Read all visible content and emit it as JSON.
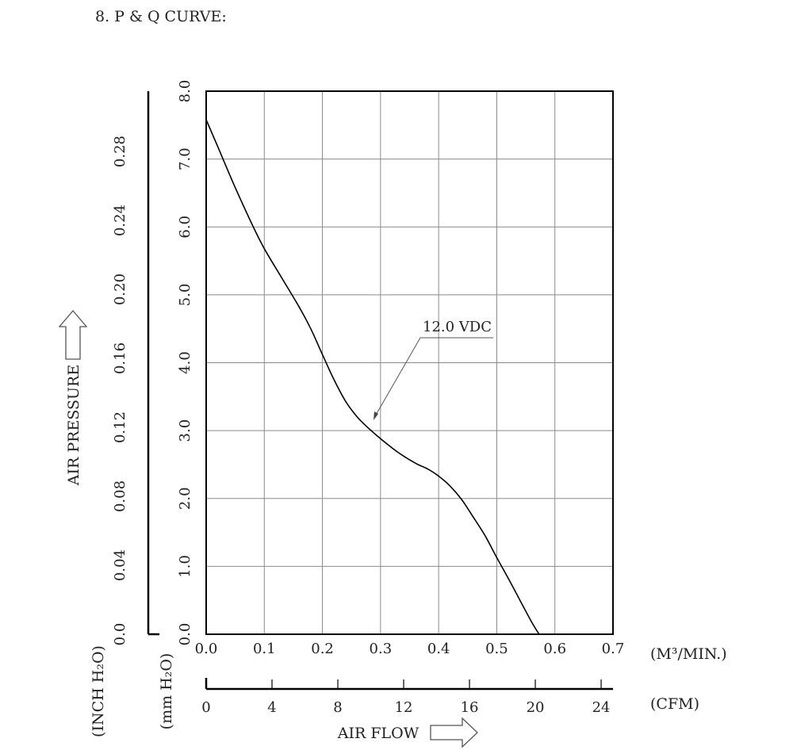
{
  "section_title": "8. P & Q CURVE:",
  "chart_data": {
    "type": "line",
    "x_axis": {
      "unit_label": "(M³/MIN.)",
      "range": [
        0,
        0.7
      ],
      "ticks": [
        "0.0",
        "0.1",
        "0.2",
        "0.3",
        "0.4",
        "0.5",
        "0.6",
        "0.7"
      ]
    },
    "x_axis_secondary": {
      "unit_label": "(CFM)",
      "ticks": [
        "0",
        "4",
        "8",
        "12",
        "16",
        "20",
        "24"
      ],
      "tick_values": [
        0,
        4,
        8,
        12,
        16,
        20,
        24
      ]
    },
    "x_axis_title": "AIR FLOW",
    "y_axis": {
      "unit_label": "(mm H₂O)",
      "range": [
        0,
        8
      ],
      "ticks": [
        "0.0",
        "1.0",
        "2.0",
        "3.0",
        "4.0",
        "5.0",
        "6.0",
        "7.0",
        "8.0"
      ]
    },
    "y_axis_secondary": {
      "unit_label": "(INCH H₂O)",
      "ticks": [
        "0.0",
        "0.04",
        "0.08",
        "0.12",
        "0.16",
        "0.20",
        "0.24",
        "0.28"
      ],
      "tick_values": [
        0,
        0.04,
        0.08,
        0.12,
        0.16,
        0.2,
        0.24,
        0.28
      ]
    },
    "y_axis_title": "AIR PRESSURE",
    "grid": true,
    "series": [
      {
        "name": "12.0 VDC",
        "x": [
          0.0,
          0.02,
          0.05,
          0.08,
          0.1,
          0.13,
          0.16,
          0.18,
          0.2,
          0.22,
          0.24,
          0.26,
          0.28,
          0.3,
          0.33,
          0.36,
          0.38,
          0.4,
          0.42,
          0.44,
          0.46,
          0.48,
          0.5,
          0.52,
          0.54,
          0.56,
          0.573
        ],
        "y": [
          7.58,
          7.18,
          6.58,
          6.02,
          5.68,
          5.25,
          4.82,
          4.5,
          4.12,
          3.75,
          3.43,
          3.2,
          3.03,
          2.88,
          2.68,
          2.52,
          2.44,
          2.33,
          2.18,
          1.98,
          1.72,
          1.45,
          1.13,
          0.82,
          0.5,
          0.18,
          0.0
        ]
      }
    ]
  }
}
